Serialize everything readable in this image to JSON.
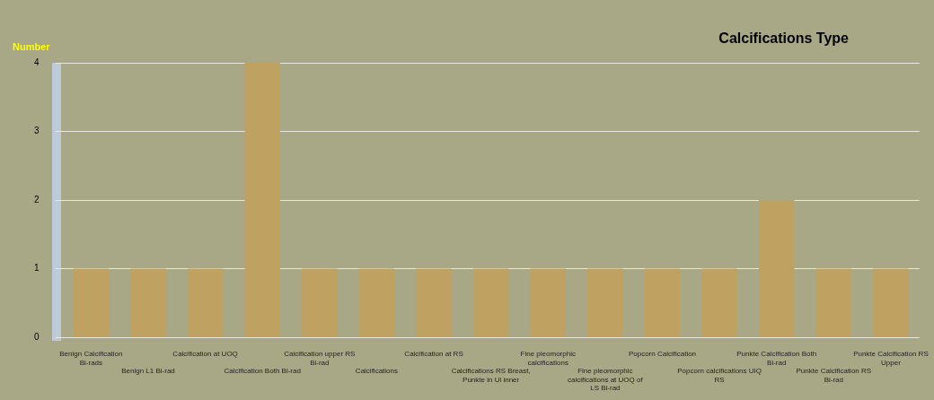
{
  "chart_data": {
    "type": "bar",
    "title": "Calcifications Type",
    "ylabel": "Number",
    "categories": [
      "Benign Calcification Bi-rads",
      "Benign L1 Bi-rad",
      "Calcification at UOQ",
      "Calcification Both Bi-rad",
      "Calcification upper RS Bi-rad",
      "Calcifications",
      "Calcification at RS",
      "Calcifications RS Breast, Punkte in Ul inner",
      "Fine pleomorphic calcifications",
      "Fine pleomorphic calcifications at UOQ of LS Bi-rad",
      "Popcorn Calcification",
      "Popcorn calcifications UIQ RS",
      "Punkte Calcification Both Bi-rad",
      "Punkte Calcification RS Bi-rad",
      "Punkte Calcification RS Upper"
    ],
    "values": [
      1,
      1,
      1,
      4,
      1,
      1,
      1,
      1,
      1,
      1,
      1,
      1,
      2,
      1,
      1
    ],
    "color": "#bfa262",
    "ylim": [
      0,
      4
    ],
    "yticks": [
      0,
      1,
      2,
      3,
      4
    ],
    "grid": "y"
  }
}
